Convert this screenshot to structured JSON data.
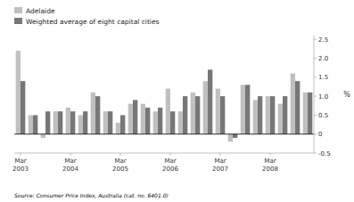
{
  "chart_data": {
    "type": "bar",
    "categories": [
      "Mar\n2003",
      null,
      null,
      null,
      "Mar\n2004",
      null,
      null,
      null,
      "Mar\n2005",
      null,
      null,
      null,
      "Mar\n2006",
      null,
      null,
      null,
      "Mar\n2007",
      null,
      null,
      null,
      "Mar\n2008",
      null,
      null,
      null
    ],
    "series": [
      {
        "name": "Adelaide",
        "color": "#c0c0c0",
        "values": [
          2.2,
          0.5,
          -0.1,
          0.6,
          0.7,
          0.5,
          1.1,
          0.6,
          0.3,
          0.8,
          0.8,
          0.6,
          1.2,
          0.6,
          1.1,
          1.4,
          1.2,
          -0.2,
          1.3,
          0.9,
          1.0,
          0.8,
          1.6,
          1.1
        ]
      },
      {
        "name": "Weighted average of eight capital cities",
        "color": "#777777",
        "values": [
          1.4,
          0.5,
          0.6,
          0.6,
          0.6,
          0.6,
          1.0,
          0.6,
          0.5,
          0.9,
          0.7,
          0.7,
          0.6,
          1.0,
          1.0,
          1.7,
          1.0,
          -0.1,
          1.3,
          1.0,
          1.0,
          1.0,
          1.4,
          1.1
        ]
      }
    ],
    "ylabel": "%",
    "ylim": [
      -0.5,
      2.6
    ],
    "yticks": [
      -0.5,
      0,
      0.5,
      {
        "value": 1.0,
        "label": "1.0"
      },
      1.5,
      {
        "value": 2.0,
        "label": "2.0"
      },
      2.5
    ],
    "annotations": [
      "Source: Consumer Price Index, Australia (cat.  no.  6401.0)"
    ],
    "legend": "top",
    "grid": false
  }
}
